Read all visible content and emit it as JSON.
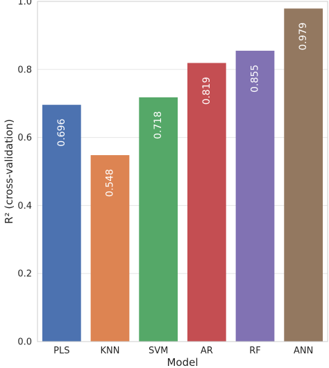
{
  "chart_data": {
    "type": "bar",
    "title": "",
    "xlabel": "Model",
    "ylabel": "R² (cross-validation)",
    "categories": [
      "PLS",
      "KNN",
      "SVM",
      "AR",
      "RF",
      "ANN"
    ],
    "values": [
      0.696,
      0.548,
      0.718,
      0.819,
      0.855,
      0.979
    ],
    "data_labels": [
      "0.696",
      "0.548",
      "0.718",
      "0.819",
      "0.855",
      "0.979"
    ],
    "colors": [
      "#4c72b0",
      "#dd8452",
      "#55a868",
      "#c44e52",
      "#8172b3",
      "#937860"
    ],
    "ylim": [
      0,
      1.0
    ],
    "yticks": [
      0.0,
      0.2,
      0.4,
      0.6,
      0.8,
      1.0
    ],
    "ytick_labels": [
      "0.0",
      "0.2",
      "0.4",
      "0.6",
      "0.8",
      "1.0"
    ],
    "grid": "y",
    "legend": "none"
  }
}
